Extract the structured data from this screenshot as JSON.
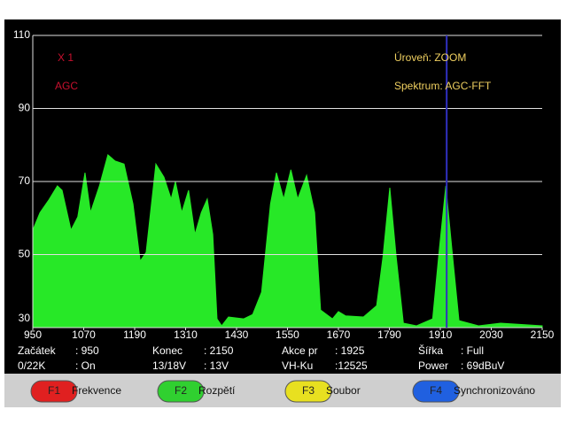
{
  "chart_data": {
    "type": "area",
    "x": [
      950,
      967,
      988,
      1008,
      1019,
      1040,
      1056,
      1073,
      1086,
      1107,
      1127,
      1144,
      1165,
      1186,
      1203,
      1217,
      1240,
      1259,
      1276,
      1286,
      1301,
      1317,
      1332,
      1347,
      1361,
      1374,
      1384,
      1395,
      1411,
      1447,
      1468,
      1489,
      1510,
      1524,
      1541,
      1558,
      1574,
      1595,
      1614,
      1628,
      1656,
      1670,
      1687,
      1729,
      1760,
      1775,
      1791,
      1806,
      1823,
      1854,
      1892,
      1908,
      1923,
      1937,
      1954,
      2000,
      2052,
      2150
    ],
    "series": [
      {
        "color": "#27e827",
        "values": [
          56.7,
          61.5,
          65,
          68.8,
          67.6,
          56.7,
          60.3,
          72.4,
          61.5,
          68.8,
          77.3,
          75.6,
          74.8,
          63.9,
          48.2,
          50.6,
          74.8,
          71.2,
          65.2,
          70,
          61.5,
          67.6,
          55.5,
          61.5,
          65.2,
          55.5,
          32.4,
          30.5,
          32.9,
          32.4,
          33.6,
          39.7,
          63.9,
          72.4,
          65.2,
          73.2,
          65.2,
          71.7,
          61.5,
          34.8,
          32.4,
          34.4,
          33.2,
          32.9,
          36,
          49.4,
          68.3,
          49.4,
          31.2,
          30.5,
          32.4,
          51.8,
          68.8,
          51.8,
          31.9,
          30.5,
          31.2,
          30.5
        ]
      }
    ],
    "xlim": [
      950,
      2150
    ],
    "ylim": [
      30,
      110
    ],
    "xticks": [
      950,
      1070,
      1190,
      1310,
      1430,
      1550,
      1670,
      1790,
      1910,
      2030,
      2150
    ],
    "yticks": [
      30,
      50,
      70,
      90,
      110
    ],
    "grid": true,
    "cursor_x": 1925,
    "cursor_color": "#3030c0",
    "annotations": [
      {
        "text": "X 1",
        "color": "#c8102e"
      },
      {
        "text": "AGC",
        "color": "#c8102e"
      },
      {
        "text": "Úroveň: ZOOM",
        "color": "#f0d060"
      },
      {
        "text": "Spektrum: AGC-FFT",
        "color": "#f0d060"
      }
    ]
  },
  "status": [
    [
      "Začátek",
      ": 950"
    ],
    [
      "Konec",
      ": 2150"
    ],
    [
      "Akce pr",
      ": 1925"
    ],
    [
      "Šířka",
      ": Full"
    ],
    [
      "0/22K",
      ": On"
    ],
    [
      "13/18V",
      ": 13V"
    ],
    [
      "VH-Ku",
      ":12525"
    ],
    [
      "Power",
      ": 69dBuV"
    ]
  ],
  "buttons": [
    {
      "key": "F1",
      "label": "Frekvence",
      "color": "#e02020"
    },
    {
      "key": "F2",
      "label": "Rozpětí",
      "color": "#30d030"
    },
    {
      "key": "F3",
      "label": "Soubor",
      "color": "#e8e020"
    },
    {
      "key": "F4",
      "label": "Synchronizováno",
      "color": "#2060e0"
    }
  ]
}
